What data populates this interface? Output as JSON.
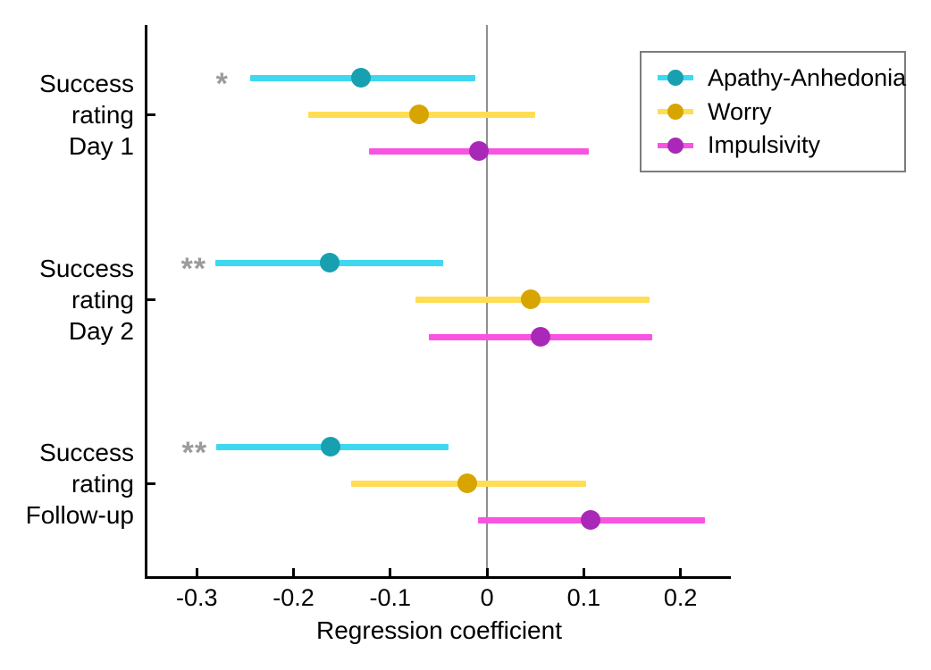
{
  "chart_data": {
    "type": "scatter",
    "subtype": "forest-plot-horizontal-ci",
    "title": "",
    "xlabel": "Regression coefficient",
    "ylabel": "",
    "xlim": [
      -0.351,
      0.252
    ],
    "x_ticks": [
      -0.3,
      -0.2,
      -0.1,
      0,
      0.1,
      0.2
    ],
    "x_tick_labels": [
      "-0.3",
      "-0.2",
      "-0.1",
      "0",
      "0.1",
      "0.2"
    ],
    "grid": false,
    "zero_reference_line": 0,
    "legend_position": "top-right",
    "series": [
      {
        "name": "Apathy-Anhedonia",
        "line_color": "#3ed9f1",
        "dot_color": "#17a0af"
      },
      {
        "name": "Worry",
        "line_color": "#ffdd55",
        "dot_color": "#d8a400"
      },
      {
        "name": "Impulsivity",
        "line_color": "#f854e1",
        "dot_color": "#a928b7"
      }
    ],
    "groups": [
      {
        "label_lines": [
          "Success",
          "rating",
          "Day 1"
        ],
        "points": [
          {
            "series": "Apathy-Anhedonia",
            "coef": -0.13,
            "ci": [
              -0.245,
              -0.012
            ],
            "sig": "*"
          },
          {
            "series": "Worry",
            "coef": -0.07,
            "ci": [
              -0.185,
              0.05
            ],
            "sig": ""
          },
          {
            "series": "Impulsivity",
            "coef": -0.008,
            "ci": [
              -0.122,
              0.105
            ],
            "sig": ""
          }
        ]
      },
      {
        "label_lines": [
          "Success",
          "rating",
          "Day 2"
        ],
        "points": [
          {
            "series": "Apathy-Anhedonia",
            "coef": -0.163,
            "ci": [
              -0.281,
              -0.045
            ],
            "sig": "**"
          },
          {
            "series": "Worry",
            "coef": 0.045,
            "ci": [
              -0.074,
              0.168
            ],
            "sig": ""
          },
          {
            "series": "Impulsivity",
            "coef": 0.055,
            "ci": [
              -0.06,
              0.171
            ],
            "sig": ""
          }
        ]
      },
      {
        "label_lines": [
          "Success",
          "rating",
          "Follow-up"
        ],
        "points": [
          {
            "series": "Apathy-Anhedonia",
            "coef": -0.162,
            "ci": [
              -0.28,
              -0.04
            ],
            "sig": "**"
          },
          {
            "series": "Worry",
            "coef": -0.02,
            "ci": [
              -0.14,
              0.102
            ],
            "sig": ""
          },
          {
            "series": "Impulsivity",
            "coef": 0.107,
            "ci": [
              -0.009,
              0.225
            ],
            "sig": ""
          }
        ]
      }
    ],
    "colors": {
      "axis": "#000000",
      "zero_line": "#8f8f8f",
      "significance_stars": "#9b9b9b",
      "legend_border": "#7c7c7c",
      "background": "#ffffff"
    }
  }
}
